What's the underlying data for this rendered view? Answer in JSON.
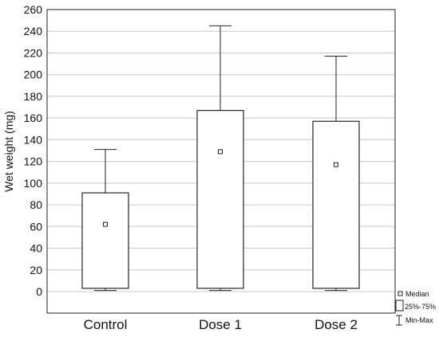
{
  "chart_data": {
    "type": "box",
    "title": "",
    "xlabel": "",
    "ylabel": "Wet weight (mg)",
    "ylim": [
      0,
      260
    ],
    "yticks": [
      0,
      20,
      40,
      60,
      80,
      100,
      120,
      140,
      160,
      180,
      200,
      220,
      240,
      260
    ],
    "grid": true,
    "categories": [
      "Control",
      "Dose 1",
      "Dose 2"
    ],
    "boxes": [
      {
        "category": "Control",
        "min": 1,
        "q1": 3,
        "median": 62,
        "q3": 91,
        "max": 131
      },
      {
        "category": "Dose 1",
        "min": 1,
        "q1": 3,
        "median": 129,
        "q3": 167,
        "max": 245
      },
      {
        "category": "Dose 2",
        "min": 1,
        "q1": 3,
        "median": 117,
        "q3": 157,
        "max": 217
      }
    ],
    "legend": {
      "position": "bottom-right",
      "items": [
        {
          "symbol": "square-marker",
          "label": "Median"
        },
        {
          "symbol": "box",
          "label": "25%-75%"
        },
        {
          "symbol": "whisker",
          "label": "Min-Max"
        }
      ]
    },
    "colors": {
      "box_fill": "#ffffff",
      "stroke": "#222222",
      "grid": "#c8c8c8"
    }
  }
}
